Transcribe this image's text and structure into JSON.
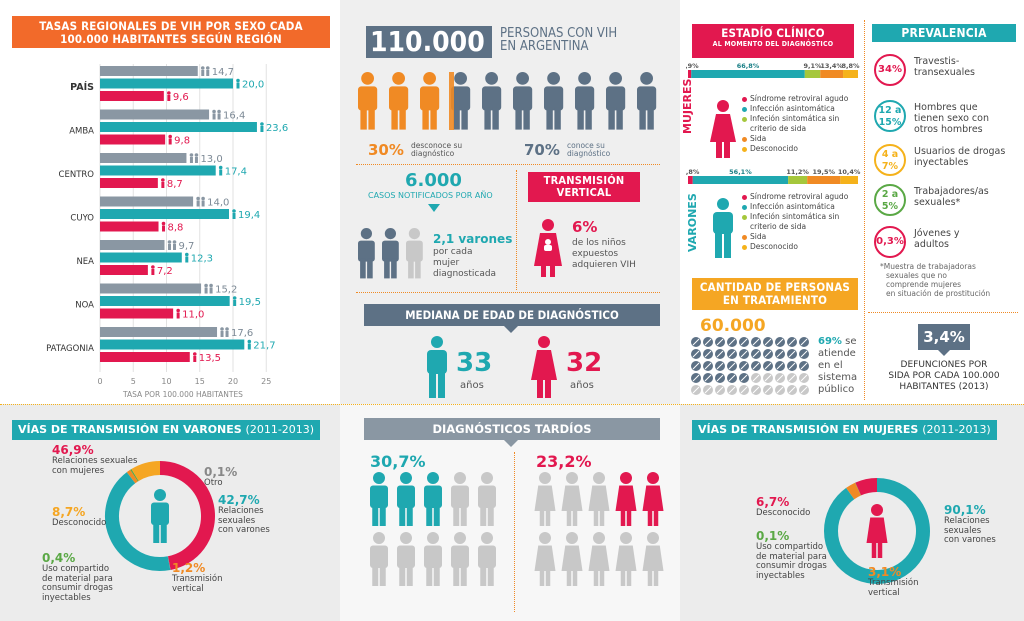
{
  "colors": {
    "teal": "#1fa8b0",
    "red": "#e2184f",
    "orange": "#f08a24",
    "grey": "#8a97a3",
    "lightgrey": "#c8c8c8",
    "yellowgreen": "#a5c73c",
    "green": "#5aa845",
    "yellow": "#f5b21b",
    "blue": "#3f5d79"
  },
  "left_chart": {
    "title_line1": "TASAS REGIONALES DE VIH POR SEXO CADA",
    "title_line2": "100.000 HABITANTES SEGÚN REGIÓN",
    "xlabel": "TASA POR 100.000 HABITANTES",
    "ticks": [
      "0",
      "5",
      "10",
      "15",
      "20",
      "25"
    ]
  },
  "chart_data": {
    "type": "bar",
    "title": "TASAS REGIONALES DE VIH POR SEXO CADA 100.000 HABITANTES SEGÚN REGIÓN",
    "xlabel": "TASA POR 100.000 HABITANTES",
    "xlim": [
      0,
      25
    ],
    "categories": [
      "PAÍS",
      "AMBA",
      "CENTRO",
      "CUYO",
      "NEA",
      "NOA",
      "PATAGONIA"
    ],
    "series": [
      {
        "values": [
          14.7,
          16.4,
          13.0,
          14.0,
          9.7,
          15.2,
          17.6
        ]
      },
      {
        "values": [
          20.0,
          23.6,
          17.4,
          19.4,
          12.3,
          19.5,
          21.7
        ]
      },
      {
        "values": [
          9.6,
          9.8,
          8.7,
          8.8,
          7.2,
          11.0,
          13.5
        ]
      }
    ],
    "labels": [
      [
        "14,7",
        "20,0",
        "9,6"
      ],
      [
        "16,4",
        "23,6",
        "9,8"
      ],
      [
        "13,0",
        "17,4",
        "8,7"
      ],
      [
        "14,0",
        "19,4",
        "8,8"
      ],
      [
        "9,7",
        "12,3",
        "7,2"
      ],
      [
        "15,2",
        "19,5",
        "11,0"
      ],
      [
        "17,6",
        "21,7",
        "13,5"
      ]
    ]
  },
  "center": {
    "headline_num": "110.000",
    "headline_l1": "PERSONAS CON VIH",
    "headline_l2": "EN ARGENTINA",
    "pct_desconoce": "30%",
    "desconoce_l1": "desconoce su",
    "desconoce_l2": "diagnóstico",
    "pct_conoce": "70%",
    "conoce_l1": "conoce su",
    "conoce_l2": "diagnóstico",
    "casos_num": "6.000",
    "casos_label": "CASOS NOTIFICADOS POR AÑO",
    "varones_num": "2,1 varones",
    "varones_l1": "por cada",
    "varones_l2": "mujer",
    "varones_l3": "diagnosticada",
    "tv_title1": "TRANSMISIÓN",
    "tv_title2": "VERTICAL",
    "tv_pct": "6%",
    "tv_l1": "de los niños",
    "tv_l2": "expuestos",
    "tv_l3": "adquieren VIH",
    "mediana_title": "MEDIANA DE EDAD DE DIAGNÓSTICO",
    "edad_h": "33",
    "edad_m": "32",
    "anios": "años",
    "tardios_title": "DIAGNÓSTICOS TARDÍOS",
    "tardios_h": "30,7%",
    "tardios_m": "23,2%"
  },
  "estadio": {
    "title1": "ESTADÍO CLÍNICO",
    "title2": "AL MOMENTO DEL DIAGNÓSTICO",
    "mujeres_label": "MUJERES",
    "varones_label": "VARONES",
    "mujeres_values": [
      "1,9%",
      "66,8%",
      "9,1%",
      "13,4%",
      "8,8%"
    ],
    "varones_values": [
      "2,8%",
      "56,1%",
      "11,2%",
      "19,5%",
      "10,4%"
    ],
    "legend": [
      "Síndrome retroviral agudo",
      "Infección asintomática",
      "Infeción sintomática sin",
      "criterio de sida",
      "Sida",
      "Desconocido"
    ]
  },
  "prevalencia": {
    "title": "PREVALENCIA",
    "items": [
      {
        "pct": "34%",
        "l1": "Travestis-",
        "l2": "transexuales",
        "l3": ""
      },
      {
        "pct1": "12 a",
        "pct2": "15%",
        "l1": "Hombres que",
        "l2": "tienen sexo con",
        "l3": "otros hombres"
      },
      {
        "pct1": "4 a",
        "pct2": "7%",
        "l1": "Usuarios de drogas",
        "l2": "inyectables",
        "l3": ""
      },
      {
        "pct1": "2 a",
        "pct2": "5%",
        "l1": "Trabajadores/as",
        "l2": "sexuales*",
        "l3": ""
      },
      {
        "pct": "0,3%",
        "l1": "Jóvenes y",
        "l2": "adultos",
        "l3": ""
      }
    ],
    "note": [
      "*Muestra de trabajadoras",
      "sexuales que no",
      "comprende mujeres",
      "en situación de prostitución"
    ]
  },
  "tratamiento": {
    "title1": "CANTIDAD DE PERSONAS",
    "title2": "EN TRATAMIENTO",
    "num": "60.000",
    "pct": "69%",
    "l1": "se",
    "l2": "atiende",
    "l3": "en el",
    "l4": "sistema",
    "l5": "público"
  },
  "defunciones": {
    "num": "3,4%",
    "l1": "DEFUNCIONES POR",
    "l2": "SIDA POR CADA 100.000",
    "l3": "HABITANTES (2013)"
  },
  "vias_varones": {
    "title": "VÍAS DE TRANSMISIÓN EN VARONES",
    "years": "(2011-2013)",
    "slices": [
      {
        "pct": "46,9%",
        "l1": "Relaciones sexuales",
        "l2": "con mujeres",
        "l3": "",
        "l4": ""
      },
      {
        "pct": "0,1%",
        "l1": "Otro",
        "l2": "",
        "l3": "",
        "l4": ""
      },
      {
        "pct": "42,7%",
        "l1": "Relaciones",
        "l2": "sexuales",
        "l3": "con varones",
        "l4": ""
      },
      {
        "pct": "8,7%",
        "l1": "Desconocido",
        "l2": "",
        "l3": "",
        "l4": ""
      },
      {
        "pct": "0,4%",
        "l1": "Uso compartido",
        "l2": "de material para",
        "l3": "consumir drogas",
        "l4": "inyectables"
      },
      {
        "pct": "1,2%",
        "l1": "Transmisión",
        "l2": "vertical",
        "l3": "",
        "l4": ""
      }
    ]
  },
  "vias_mujeres": {
    "title": "VÍAS DE TRANSMISIÓN EN MUJERES",
    "years": "(2011-2013)",
    "slices": [
      {
        "pct": "6,7%",
        "l1": "Desconocido",
        "l2": "",
        "l3": "",
        "l4": ""
      },
      {
        "pct": "90,1%",
        "l1": "Relaciones",
        "l2": "sexuales",
        "l3": "con varones",
        "l4": ""
      },
      {
        "pct": "0,1%",
        "l1": "Uso compartido",
        "l2": "de material para",
        "l3": "consumir drogas",
        "l4": "inyectables"
      },
      {
        "pct": "3,1%",
        "l1": "Transmisión",
        "l2": "vertical",
        "l3": "",
        "l4": ""
      }
    ]
  }
}
